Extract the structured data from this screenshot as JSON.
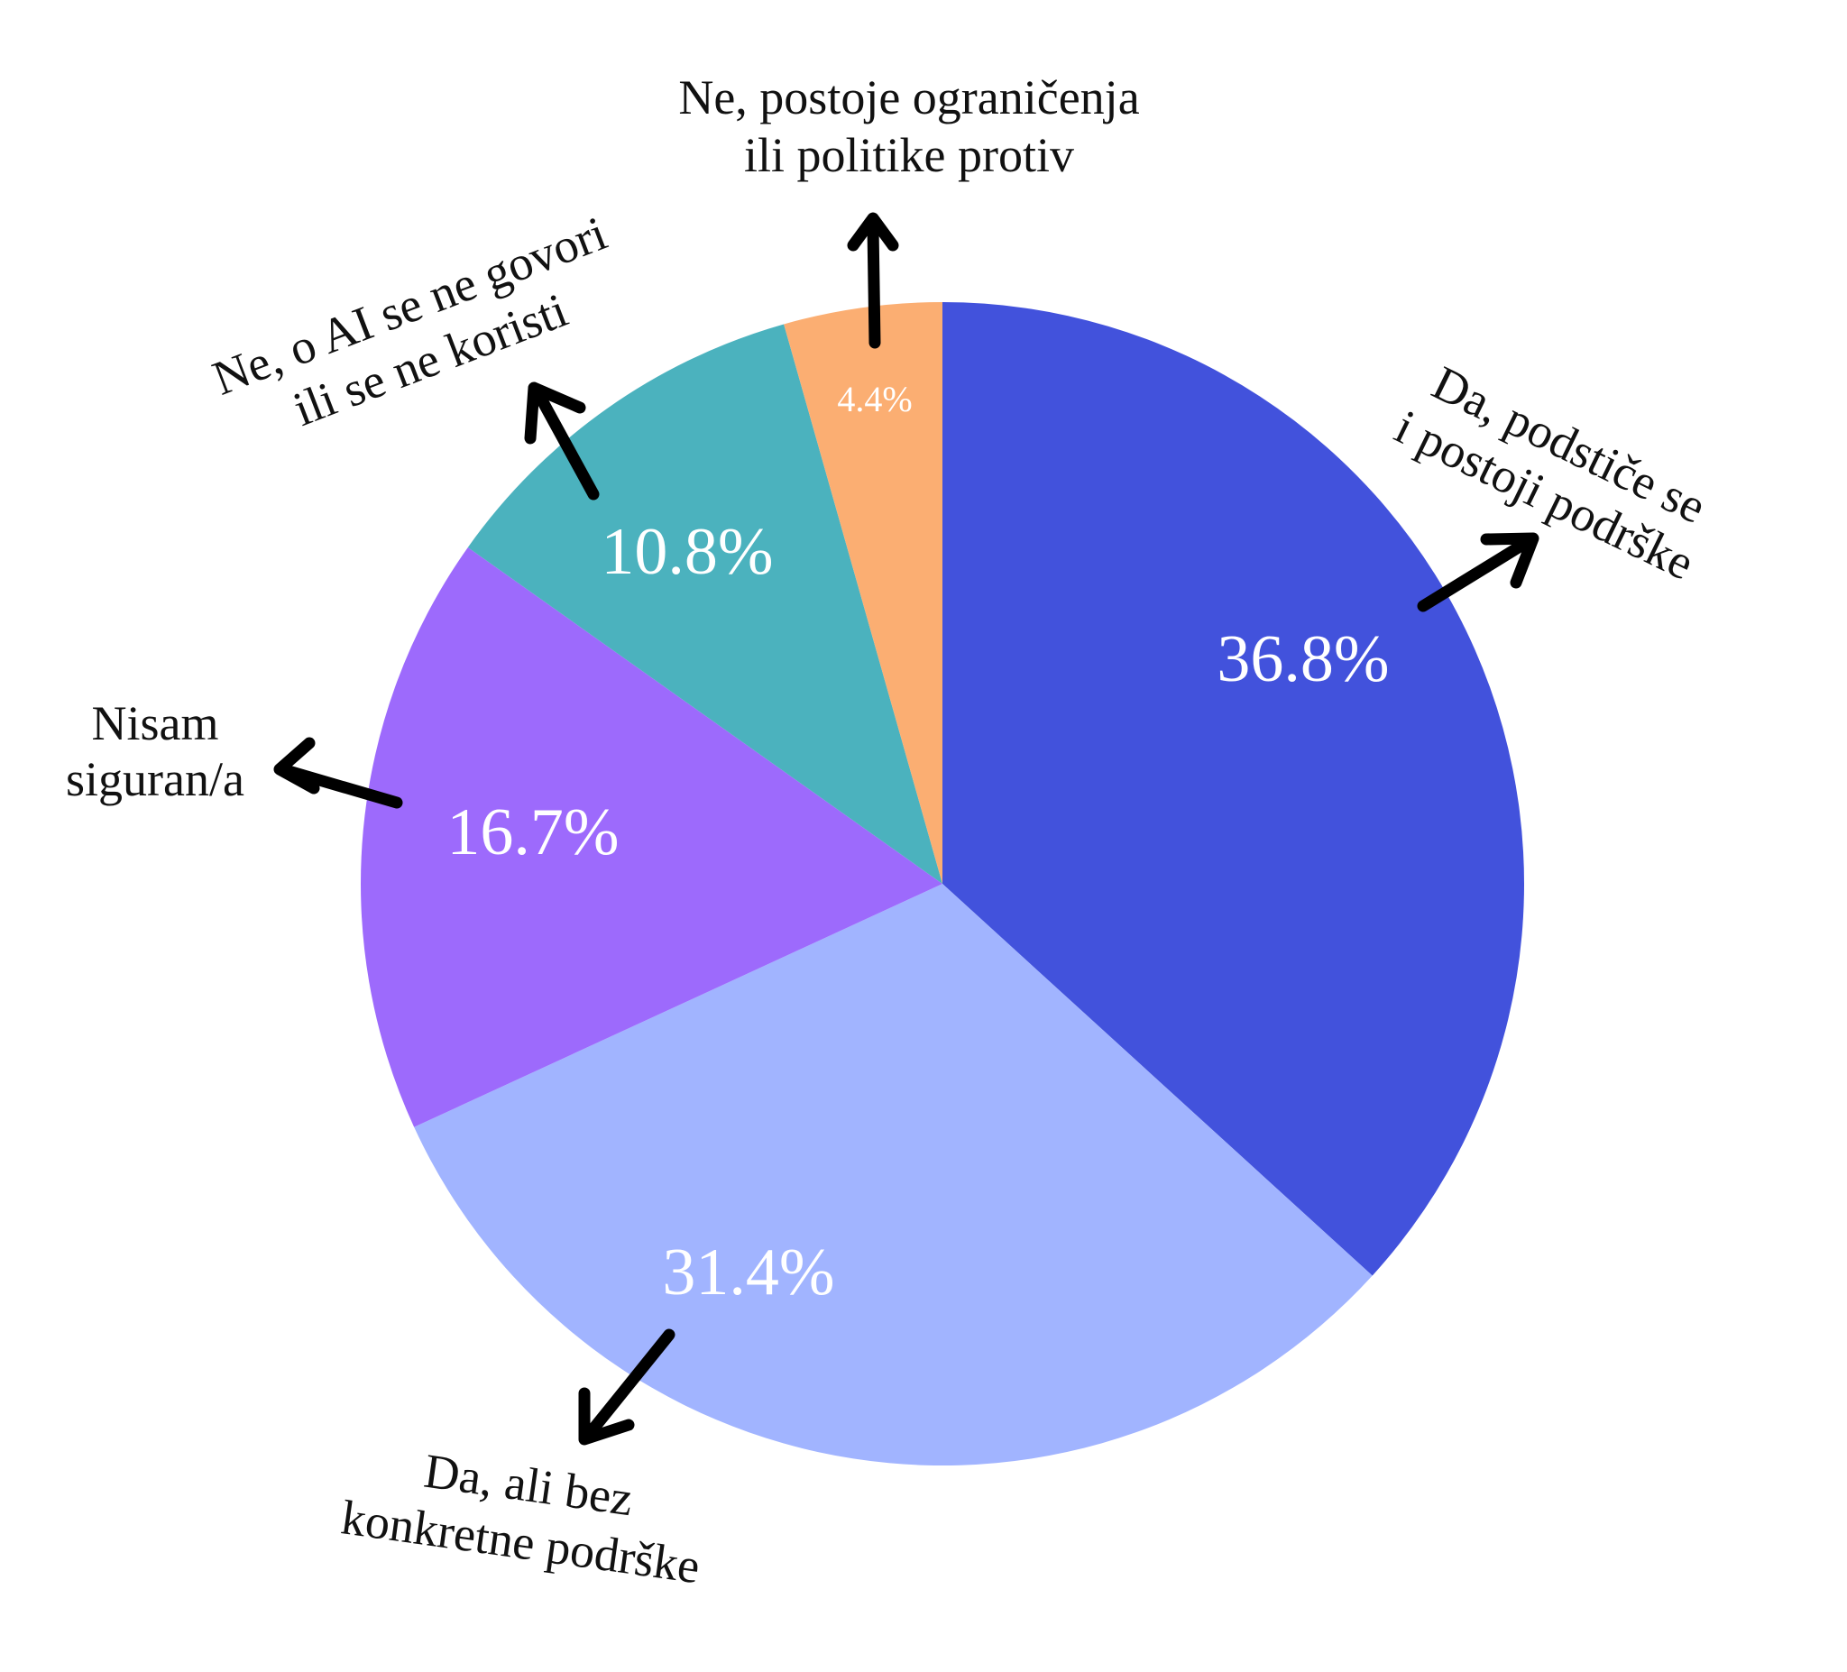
{
  "chart_data": {
    "type": "pie",
    "start_angle": "top",
    "direction": "clockwise",
    "slices": [
      {
        "label": [
          "Da, podstiče se",
          "i postoji podrške"
        ],
        "value": 36.8,
        "value_label": "36.8%",
        "color": "#4252DC"
      },
      {
        "label": [
          "Da, ali bez",
          "konkretne podrške"
        ],
        "value": 31.4,
        "value_label": "31.4%",
        "color": "#A1B4FF"
      },
      {
        "label": [
          "Nisam",
          "siguran/a"
        ],
        "value": 16.7,
        "value_label": "16.7%",
        "color": "#9D6AFC"
      },
      {
        "label": [
          "Ne, o AI se ne govori",
          "ili se ne koristi"
        ],
        "value": 10.8,
        "value_label": "10.8%",
        "color": "#4BB2BE"
      },
      {
        "label": [
          "Ne, postoje ograničenja",
          "ili politike protiv"
        ],
        "value": 4.4,
        "value_label": "4.4%",
        "color": "#FBAE72"
      }
    ]
  }
}
